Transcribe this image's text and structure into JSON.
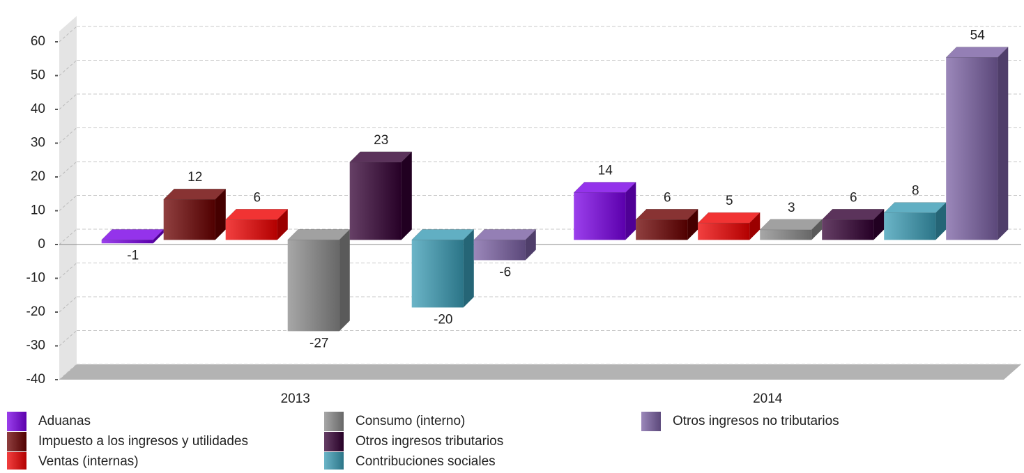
{
  "chart_data": {
    "type": "bar3d",
    "categories": [
      "2013",
      "2014"
    ],
    "series": [
      {
        "name": "Aduanas",
        "color": "#7a00e6",
        "values": [
          -1,
          14
        ]
      },
      {
        "name": "Impuesto a los ingresos y utilidades",
        "color": "#6b0000",
        "values": [
          12,
          6
        ]
      },
      {
        "name": "Ventas (internas)",
        "color": "#ee0000",
        "values": [
          6,
          5
        ]
      },
      {
        "name": "Consumo (interno)",
        "color": "#8a8a8a",
        "values": [
          -27,
          3
        ]
      },
      {
        "name": "Otros ingresos tributarios",
        "color": "#330033",
        "values": [
          23,
          6
        ]
      },
      {
        "name": "Contribuciones sociales",
        "color": "#3a9cb5",
        "values": [
          -20,
          8
        ]
      },
      {
        "name": "Otros ingresos no tributarios",
        "color": "#7a60a3",
        "values": [
          -6,
          54
        ]
      }
    ],
    "ylim": [
      -40,
      60
    ],
    "yticks": [
      -40,
      -30,
      -20,
      -10,
      0,
      10,
      20,
      30,
      40,
      50,
      60
    ],
    "grid": true
  }
}
